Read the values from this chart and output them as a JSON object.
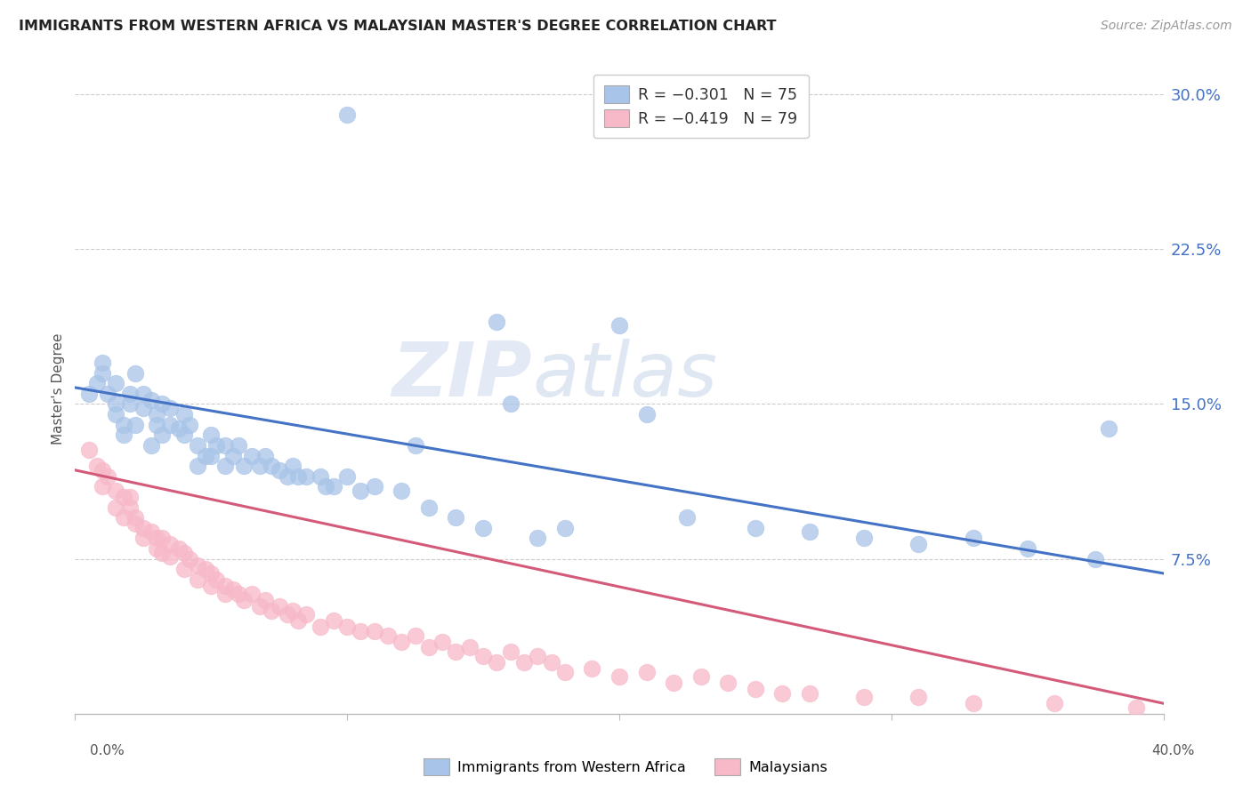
{
  "title": "IMMIGRANTS FROM WESTERN AFRICA VS MALAYSIAN MASTER'S DEGREE CORRELATION CHART",
  "source": "Source: ZipAtlas.com",
  "ylabel": "Master's Degree",
  "yticks": [
    "7.5%",
    "15.0%",
    "22.5%",
    "30.0%"
  ],
  "yticks_vals": [
    0.075,
    0.15,
    0.225,
    0.3
  ],
  "xlim": [
    0.0,
    0.4
  ],
  "ylim": [
    0.0,
    0.315
  ],
  "color_blue": "#a8c4e8",
  "color_pink": "#f7b8c8",
  "color_blue_line": "#4472c4",
  "color_pink_line": "#d45a7a",
  "watermark_zip": "ZIP",
  "watermark_atlas": "atlas",
  "blue_scatter_x": [
    0.005,
    0.008,
    0.01,
    0.01,
    0.012,
    0.015,
    0.015,
    0.015,
    0.018,
    0.018,
    0.02,
    0.02,
    0.022,
    0.022,
    0.025,
    0.025,
    0.028,
    0.028,
    0.03,
    0.03,
    0.032,
    0.032,
    0.035,
    0.035,
    0.038,
    0.04,
    0.04,
    0.042,
    0.045,
    0.045,
    0.048,
    0.05,
    0.05,
    0.052,
    0.055,
    0.055,
    0.058,
    0.06,
    0.062,
    0.065,
    0.068,
    0.07,
    0.072,
    0.075,
    0.078,
    0.08,
    0.082,
    0.085,
    0.09,
    0.092,
    0.095,
    0.1,
    0.105,
    0.11,
    0.12,
    0.125,
    0.13,
    0.14,
    0.15,
    0.155,
    0.16,
    0.17,
    0.18,
    0.2,
    0.21,
    0.225,
    0.25,
    0.27,
    0.29,
    0.31,
    0.33,
    0.35,
    0.375,
    0.38,
    0.1
  ],
  "blue_scatter_y": [
    0.155,
    0.16,
    0.17,
    0.165,
    0.155,
    0.15,
    0.145,
    0.16,
    0.14,
    0.135,
    0.155,
    0.15,
    0.165,
    0.14,
    0.148,
    0.155,
    0.152,
    0.13,
    0.145,
    0.14,
    0.135,
    0.15,
    0.148,
    0.14,
    0.138,
    0.135,
    0.145,
    0.14,
    0.13,
    0.12,
    0.125,
    0.135,
    0.125,
    0.13,
    0.13,
    0.12,
    0.125,
    0.13,
    0.12,
    0.125,
    0.12,
    0.125,
    0.12,
    0.118,
    0.115,
    0.12,
    0.115,
    0.115,
    0.115,
    0.11,
    0.11,
    0.115,
    0.108,
    0.11,
    0.108,
    0.13,
    0.1,
    0.095,
    0.09,
    0.19,
    0.15,
    0.085,
    0.09,
    0.188,
    0.145,
    0.095,
    0.09,
    0.088,
    0.085,
    0.082,
    0.085,
    0.08,
    0.075,
    0.138,
    0.29
  ],
  "pink_scatter_x": [
    0.005,
    0.008,
    0.01,
    0.01,
    0.012,
    0.015,
    0.015,
    0.018,
    0.018,
    0.02,
    0.02,
    0.022,
    0.022,
    0.025,
    0.025,
    0.028,
    0.03,
    0.03,
    0.032,
    0.032,
    0.035,
    0.035,
    0.038,
    0.04,
    0.04,
    0.042,
    0.045,
    0.045,
    0.048,
    0.05,
    0.05,
    0.052,
    0.055,
    0.055,
    0.058,
    0.06,
    0.062,
    0.065,
    0.068,
    0.07,
    0.072,
    0.075,
    0.078,
    0.08,
    0.082,
    0.085,
    0.09,
    0.095,
    0.1,
    0.105,
    0.11,
    0.115,
    0.12,
    0.125,
    0.13,
    0.135,
    0.14,
    0.145,
    0.15,
    0.155,
    0.16,
    0.165,
    0.17,
    0.175,
    0.18,
    0.19,
    0.2,
    0.21,
    0.22,
    0.23,
    0.24,
    0.25,
    0.26,
    0.27,
    0.29,
    0.31,
    0.33,
    0.36,
    0.39
  ],
  "pink_scatter_y": [
    0.128,
    0.12,
    0.118,
    0.11,
    0.115,
    0.108,
    0.1,
    0.105,
    0.095,
    0.105,
    0.1,
    0.095,
    0.092,
    0.09,
    0.085,
    0.088,
    0.085,
    0.08,
    0.085,
    0.078,
    0.082,
    0.076,
    0.08,
    0.078,
    0.07,
    0.075,
    0.072,
    0.065,
    0.07,
    0.068,
    0.062,
    0.065,
    0.062,
    0.058,
    0.06,
    0.058,
    0.055,
    0.058,
    0.052,
    0.055,
    0.05,
    0.052,
    0.048,
    0.05,
    0.045,
    0.048,
    0.042,
    0.045,
    0.042,
    0.04,
    0.04,
    0.038,
    0.035,
    0.038,
    0.032,
    0.035,
    0.03,
    0.032,
    0.028,
    0.025,
    0.03,
    0.025,
    0.028,
    0.025,
    0.02,
    0.022,
    0.018,
    0.02,
    0.015,
    0.018,
    0.015,
    0.012,
    0.01,
    0.01,
    0.008,
    0.008,
    0.005,
    0.005,
    0.003
  ],
  "blue_line_x": [
    0.0,
    0.4
  ],
  "blue_line_y": [
    0.158,
    0.068
  ],
  "pink_line_x": [
    0.0,
    0.4
  ],
  "pink_line_y": [
    0.118,
    0.005
  ]
}
